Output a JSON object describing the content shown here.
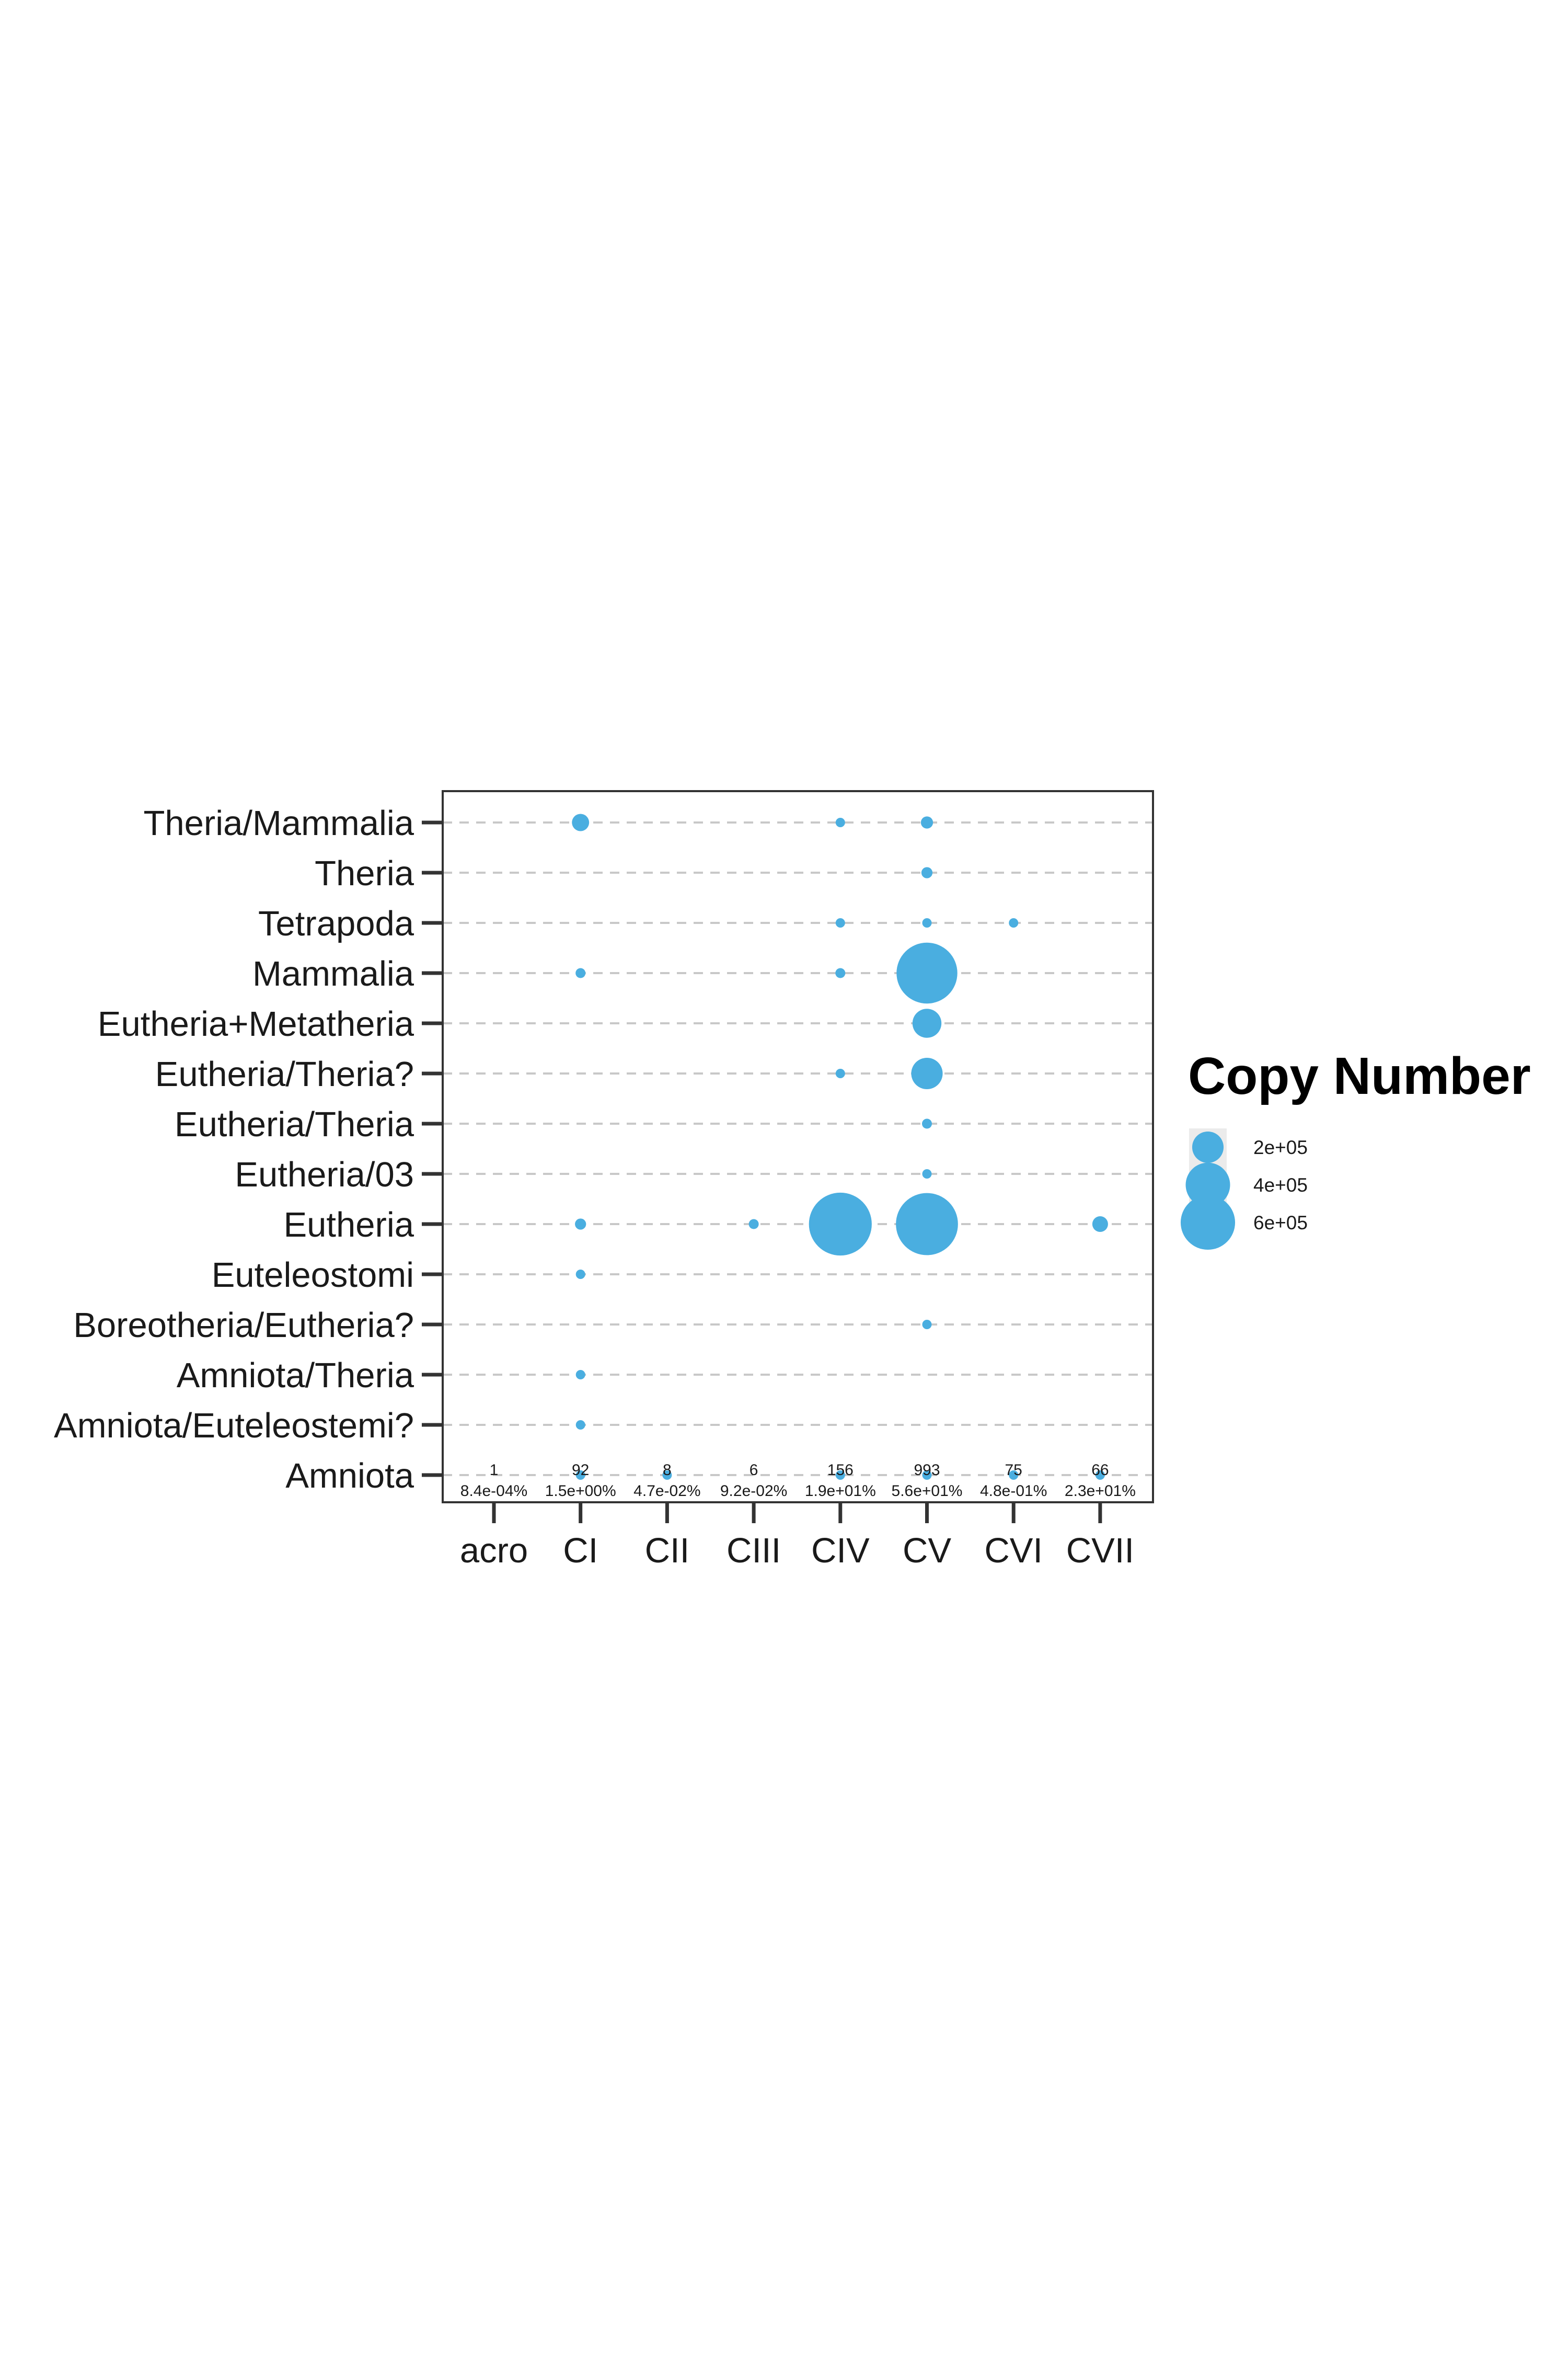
{
  "chart_data": {
    "type": "scatter",
    "title": "",
    "xlabel": "",
    "ylabel": "",
    "x_categories": [
      "acro",
      "CI",
      "CII",
      "CIII",
      "CIV",
      "CV",
      "CVI",
      "CVII"
    ],
    "y_categories": [
      "Theria/Mammalia",
      "Theria",
      "Tetrapoda",
      "Mammalia",
      "Eutheria+Metatheria",
      "Eutheria/Theria?",
      "Eutheria/Theria",
      "Eutheria/03",
      "Eutheria",
      "Euteleostomi",
      "Boreotheria/Eutheria?",
      "Amniota/Theria",
      "Amniota/Euteleostemi?",
      "Amniota"
    ],
    "size_variable": "Copy Number",
    "points": [
      {
        "x": "CI",
        "y": "Theria/Mammalia",
        "size": 60000
      },
      {
        "x": "CIV",
        "y": "Theria/Mammalia",
        "size": 15000
      },
      {
        "x": "CV",
        "y": "Theria/Mammalia",
        "size": 30000
      },
      {
        "x": "CV",
        "y": "Theria",
        "size": 25000
      },
      {
        "x": "CIV",
        "y": "Tetrapoda",
        "size": 8000
      },
      {
        "x": "CV",
        "y": "Tetrapoda",
        "size": 12000
      },
      {
        "x": "CVI",
        "y": "Tetrapoda",
        "size": 8000
      },
      {
        "x": "CI",
        "y": "Mammalia",
        "size": 20000
      },
      {
        "x": "CIV",
        "y": "Mammalia",
        "size": 20000
      },
      {
        "x": "CV",
        "y": "Mammalia",
        "size": 750000
      },
      {
        "x": "CV",
        "y": "Eutheria+Metatheria",
        "size": 170000
      },
      {
        "x": "CIV",
        "y": "Eutheria/Theria?",
        "size": 12000
      },
      {
        "x": "CV",
        "y": "Eutheria/Theria?",
        "size": 200000
      },
      {
        "x": "CV",
        "y": "Eutheria/Theria",
        "size": 20000
      },
      {
        "x": "CV",
        "y": "Eutheria/03",
        "size": 8000
      },
      {
        "x": "CI",
        "y": "Eutheria",
        "size": 25000
      },
      {
        "x": "CIII",
        "y": "Eutheria",
        "size": 20000
      },
      {
        "x": "CIV",
        "y": "Eutheria",
        "size": 800000
      },
      {
        "x": "CV",
        "y": "Eutheria",
        "size": 780000
      },
      {
        "x": "CVII",
        "y": "Eutheria",
        "size": 50000
      },
      {
        "x": "CI",
        "y": "Euteleostomi",
        "size": 8000
      },
      {
        "x": "CV",
        "y": "Boreotheria/Eutheria?",
        "size": 15000
      },
      {
        "x": "CI",
        "y": "Amniota/Theria",
        "size": 12000
      },
      {
        "x": "CI",
        "y": "Amniota/Euteleostemi?",
        "size": 8000
      },
      {
        "x": "CI",
        "y": "Amniota",
        "size": 15000
      },
      {
        "x": "CII",
        "y": "Amniota",
        "size": 10000
      },
      {
        "x": "CIV",
        "y": "Amniota",
        "size": 12000
      },
      {
        "x": "CV",
        "y": "Amniota",
        "size": 10000
      },
      {
        "x": "CVI",
        "y": "Amniota",
        "size": 10000
      },
      {
        "x": "CVII",
        "y": "Amniota",
        "size": 10000
      }
    ],
    "annotations": [
      {
        "x": "acro",
        "count": "1",
        "percent": "8.4e-04%"
      },
      {
        "x": "CI",
        "count": "92",
        "percent": "1.5e+00%"
      },
      {
        "x": "CII",
        "count": "8",
        "percent": "4.7e-02%"
      },
      {
        "x": "CIII",
        "count": "6",
        "percent": "9.2e-02%"
      },
      {
        "x": "CIV",
        "count": "156",
        "percent": "1.9e+01%"
      },
      {
        "x": "CV",
        "count": "993",
        "percent": "5.6e+01%"
      },
      {
        "x": "CVI",
        "count": "75",
        "percent": "4.8e-01%"
      },
      {
        "x": "CVII",
        "count": "66",
        "percent": "2.3e+01%"
      }
    ],
    "legend": {
      "title": "Copy Number",
      "position": "right",
      "entries": [
        {
          "label": "2e+05",
          "size": 200000
        },
        {
          "label": "4e+05",
          "size": 400000
        },
        {
          "label": "6e+05",
          "size": 600000
        }
      ]
    },
    "colors": {
      "point": "#4aaee0",
      "grid": "#c8c8c8",
      "panel_border": "#333333",
      "legend_key_bg": "#ebebeb"
    },
    "grid": true,
    "grid_style": "dashed-horizontal"
  }
}
